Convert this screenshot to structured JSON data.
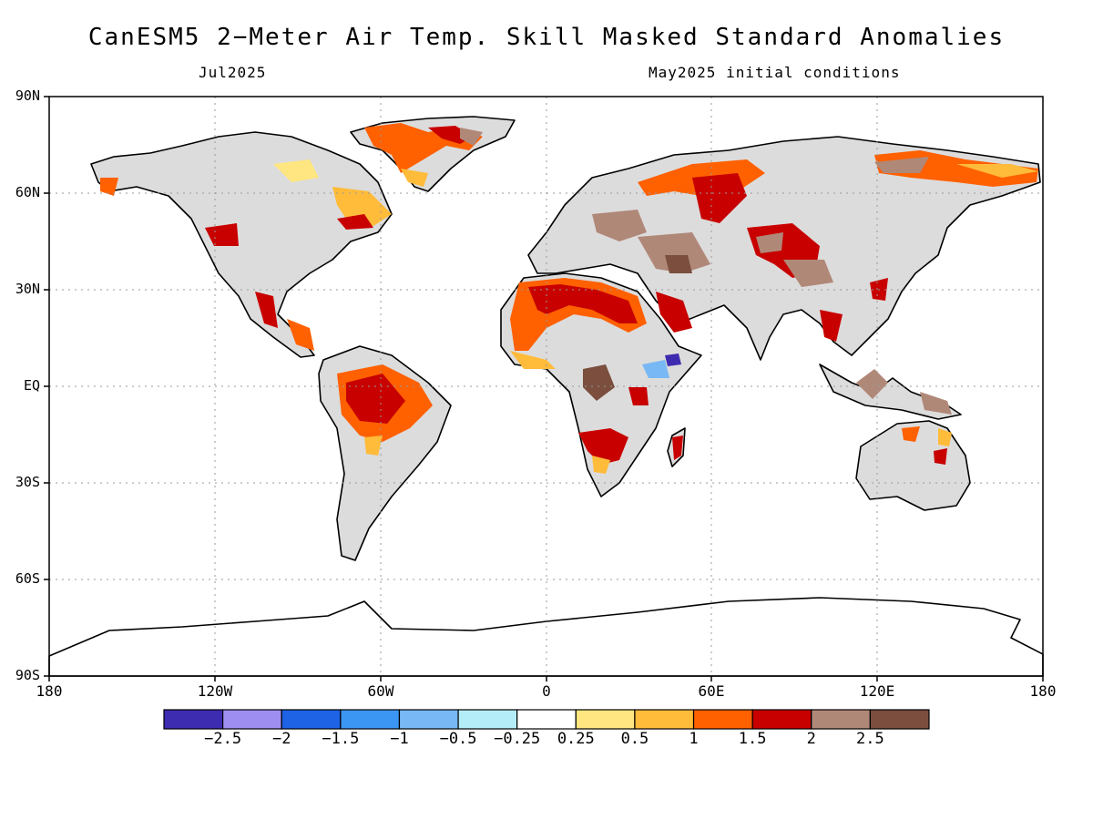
{
  "title": "CanESM5 2−Meter Air Temp. Skill Masked Standard Anomalies",
  "subtitle_left": "Jul2025",
  "subtitle_right": "May2025 initial conditions",
  "lat_labels": [
    "90N",
    "60N",
    "30N",
    "EQ",
    "30S",
    "60S",
    "90S"
  ],
  "lon_labels": [
    "180",
    "120W",
    "60W",
    "0",
    "60E",
    "120E",
    "180"
  ],
  "colorbar": {
    "labels": [
      "−2.5",
      "−2",
      "−1.5",
      "−1",
      "−0.5",
      "−0.25",
      "0.25",
      "0.5",
      "1",
      "1.5",
      "2",
      "2.5"
    ],
    "colors": [
      "#3d2bb0",
      "#9e8ef2",
      "#1e63e6",
      "#3b95f2",
      "#78b8f4",
      "#b4ecf8",
      "#ffffff",
      "#ffe680",
      "#ffbb3a",
      "#ff6000",
      "#c80000",
      "#b08878",
      "#7b4e3e"
    ]
  },
  "colors": {
    "land_masked": "#dcdcdc",
    "ocean": "#ffffff",
    "grid": "#9a9a9a"
  }
}
